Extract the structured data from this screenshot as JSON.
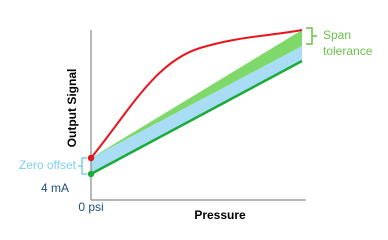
{
  "axes": {
    "x_label": "Pressure",
    "y_label": "Output Signal",
    "x_origin": "0 psi",
    "y_origin": "4 mA"
  },
  "annotations": {
    "zero_offset": "Zero offset",
    "span_tolerance": [
      "Span",
      "tolerance"
    ]
  }
}
